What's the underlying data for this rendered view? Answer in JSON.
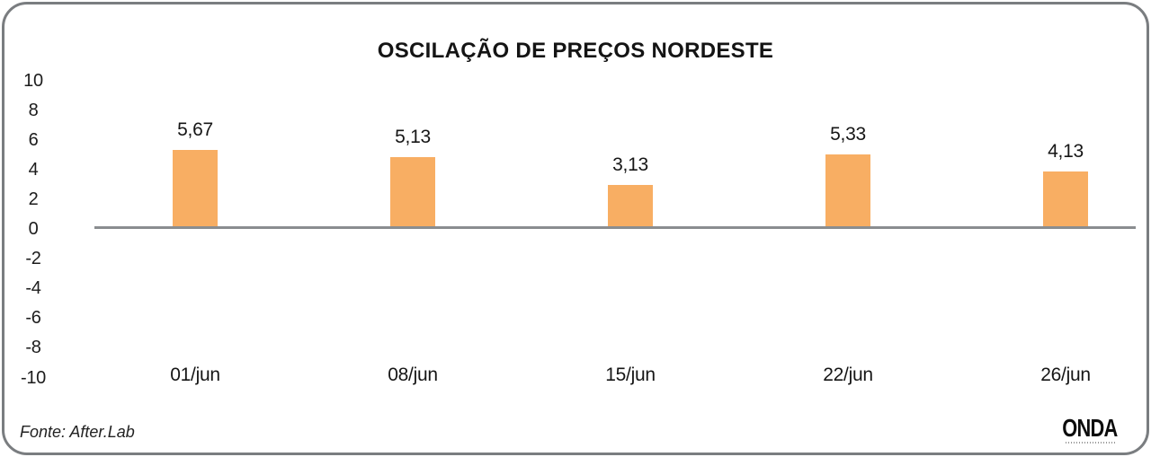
{
  "chart_data": {
    "type": "bar",
    "title": "OSCILAÇÃO DE PREÇOS NORDESTE",
    "categories": [
      "01/jun",
      "08/jun",
      "15/jun",
      "22/jun",
      "26/jun"
    ],
    "values": [
      5.67,
      5.13,
      3.13,
      5.33,
      4.13
    ],
    "value_labels": [
      "5,67",
      "5,13",
      "3,13",
      "5,33",
      "4,13"
    ],
    "y_ticks": [
      10,
      8,
      6,
      4,
      2,
      0,
      -2,
      -4,
      -6,
      -8,
      -10
    ],
    "y_tick_labels": [
      "10",
      "8",
      "6",
      "4",
      "2",
      "0",
      "-2",
      "-4",
      "-6",
      "-8",
      "-10"
    ],
    "ylim": [
      -10,
      10
    ],
    "xlabel": "",
    "ylabel": "",
    "grid": false,
    "legend_position": "none",
    "bar_color": "#F8AE63",
    "axis_line_color": "#8A8D90",
    "text_color": "#161616"
  },
  "footer": {
    "source": "Fonte: After.Lab",
    "logo": "ONDA"
  }
}
